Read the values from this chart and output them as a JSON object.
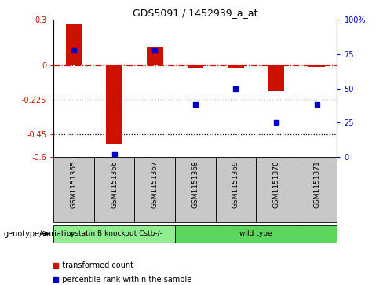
{
  "title": "GDS5091 / 1452939_a_at",
  "samples": [
    "GSM1151365",
    "GSM1151366",
    "GSM1151367",
    "GSM1151368",
    "GSM1151369",
    "GSM1151370",
    "GSM1151371"
  ],
  "red_values": [
    0.27,
    -0.52,
    0.12,
    -0.02,
    -0.02,
    -0.17,
    -0.01
  ],
  "blue_pct": [
    78,
    2,
    78,
    38,
    50,
    25,
    38
  ],
  "ylim_left": [
    -0.6,
    0.3
  ],
  "ylim_right": [
    0,
    100
  ],
  "yticks_left": [
    0.3,
    0.0,
    -0.225,
    -0.45,
    -0.6
  ],
  "yticks_left_labels": [
    "0.3",
    "0",
    "-0.225",
    "-0.45",
    "-0.6"
  ],
  "yticks_right": [
    100,
    75,
    50,
    25,
    0
  ],
  "yticks_right_labels": [
    "100%",
    "75",
    "50",
    "25",
    "0"
  ],
  "dotted_lines": [
    -0.225,
    -0.45
  ],
  "genotype_groups": [
    {
      "label": "cystatin B knockout Cstb-/-",
      "start": 0,
      "end": 3,
      "color": "#90ee90"
    },
    {
      "label": "wild type",
      "start": 3,
      "end": 7,
      "color": "#5cd65c"
    }
  ],
  "sample_bg_color": "#c8c8c8",
  "legend_red": "transformed count",
  "legend_blue": "percentile rank within the sample",
  "arrow_label": "genotype/variation",
  "bar_color": "#cc1100",
  "blue_color": "#0000cc",
  "hline_color": "#cc1100",
  "left_axis_color": "#cc1100",
  "right_axis_color": "#0000cc"
}
